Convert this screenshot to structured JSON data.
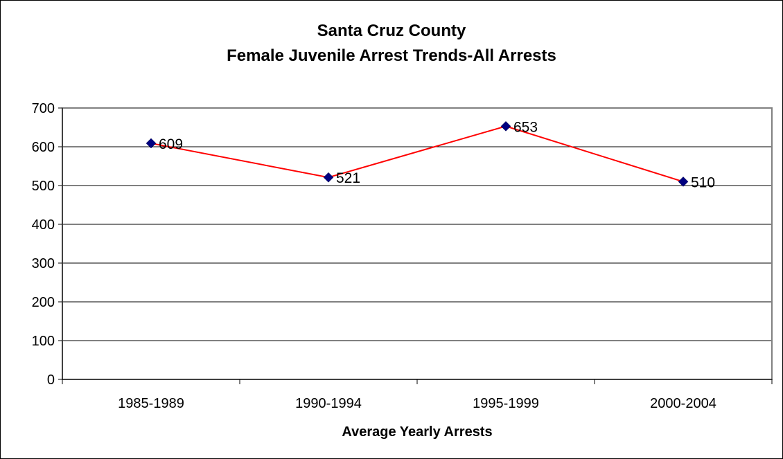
{
  "chart_data": {
    "type": "line",
    "title_lines": [
      "Santa Cruz County",
      "Female Juvenile Arrest Trends-All Arrests"
    ],
    "xlabel": "Average Yearly Arrests",
    "ylabel": "",
    "categories": [
      "1985-1989",
      "1990-1994",
      "1995-1999",
      "2000-2004"
    ],
    "series": [
      {
        "values": [
          609,
          521,
          653,
          510
        ]
      }
    ],
    "ylim": [
      0,
      700
    ],
    "yticks": [
      0,
      100,
      200,
      300,
      400,
      500,
      600,
      700
    ],
    "grid": true,
    "legend": "none",
    "colors": {
      "line": "#ff0000",
      "marker": "#000080",
      "grid": "#000000",
      "plot_border": "#808080"
    },
    "marker": "diamond",
    "data_labels": true
  }
}
